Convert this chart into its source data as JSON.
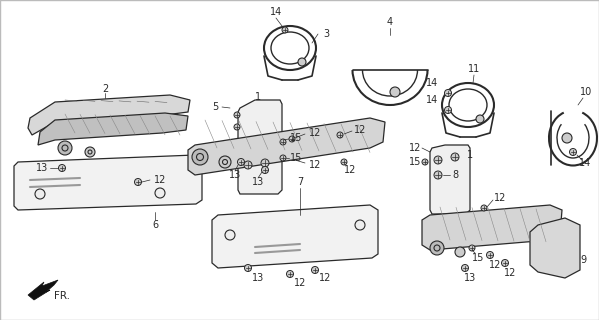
{
  "bg": "#ffffff",
  "border": "#bbbbbb",
  "fw": 5.99,
  "fh": 3.2,
  "dpi": 100,
  "lc": "#2a2a2a",
  "lw": 0.8,
  "fs": 7.0
}
